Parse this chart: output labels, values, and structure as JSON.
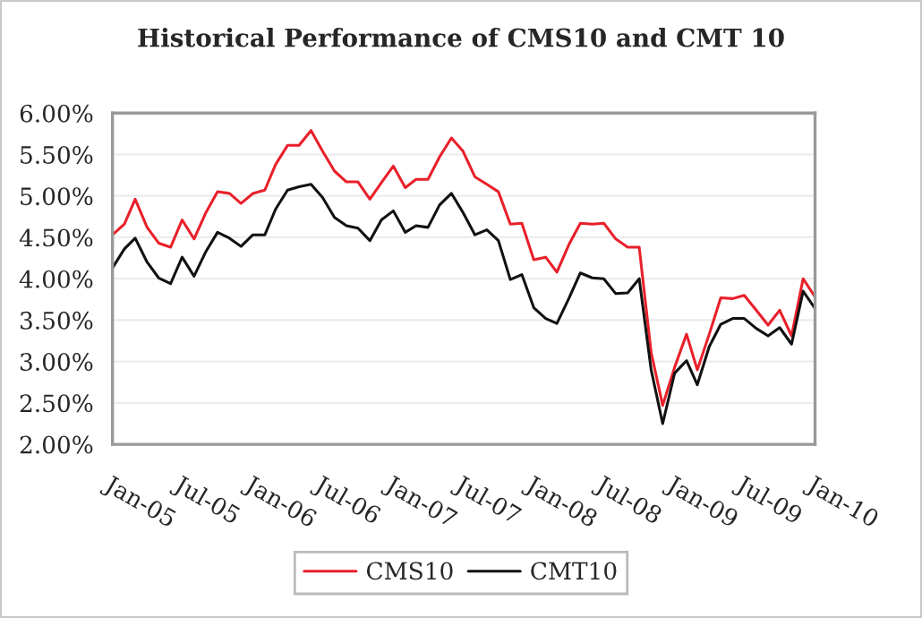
{
  "chart_data": {
    "type": "line",
    "title": "Historical Performance of CMS10 and CMT 10",
    "x": [
      "2005-01",
      "2005-02",
      "2005-03",
      "2005-04",
      "2005-05",
      "2005-06",
      "2005-07",
      "2005-08",
      "2005-09",
      "2005-10",
      "2005-11",
      "2005-12",
      "2006-01",
      "2006-02",
      "2006-03",
      "2006-04",
      "2006-05",
      "2006-06",
      "2006-07",
      "2006-08",
      "2006-09",
      "2006-10",
      "2006-11",
      "2006-12",
      "2007-01",
      "2007-02",
      "2007-03",
      "2007-04",
      "2007-05",
      "2007-06",
      "2007-07",
      "2007-08",
      "2007-09",
      "2007-10",
      "2007-11",
      "2007-12",
      "2008-01",
      "2008-02",
      "2008-03",
      "2008-04",
      "2008-05",
      "2008-06",
      "2008-07",
      "2008-08",
      "2008-09",
      "2008-10",
      "2008-11",
      "2008-12",
      "2009-01",
      "2009-02",
      "2009-03",
      "2009-04",
      "2009-05",
      "2009-06",
      "2009-07",
      "2009-08",
      "2009-09",
      "2009-10",
      "2009-11",
      "2009-12",
      "2010-01"
    ],
    "series": [
      {
        "name": "CMS10",
        "color": "#e8202a",
        "values": [
          4.53,
          4.66,
          4.96,
          4.62,
          4.43,
          4.38,
          4.71,
          4.48,
          4.8,
          5.05,
          5.03,
          4.91,
          5.03,
          5.07,
          5.38,
          5.61,
          5.61,
          5.79,
          5.54,
          5.3,
          5.17,
          5.17,
          4.96,
          5.16,
          5.36,
          5.1,
          5.2,
          5.2,
          5.47,
          5.7,
          5.54,
          5.23,
          5.14,
          5.05,
          4.66,
          4.67,
          4.23,
          4.26,
          4.08,
          4.41,
          4.67,
          4.66,
          4.67,
          4.48,
          4.38,
          4.38,
          3.11,
          2.47,
          2.93,
          3.33,
          2.9,
          3.33,
          3.77,
          3.76,
          3.8,
          3.62,
          3.44,
          3.62,
          3.31,
          4.0,
          3.78
        ]
      },
      {
        "name": "CMT10",
        "color": "#111111",
        "values": [
          4.13,
          4.36,
          4.49,
          4.2,
          4.01,
          3.94,
          4.26,
          4.03,
          4.33,
          4.56,
          4.49,
          4.39,
          4.53,
          4.53,
          4.84,
          5.07,
          5.11,
          5.14,
          4.98,
          4.74,
          4.64,
          4.61,
          4.46,
          4.71,
          4.82,
          4.56,
          4.64,
          4.62,
          4.89,
          5.03,
          4.8,
          4.53,
          4.59,
          4.46,
          3.99,
          4.05,
          3.65,
          3.52,
          3.46,
          3.76,
          4.07,
          4.01,
          4.0,
          3.82,
          3.83,
          4.0,
          2.9,
          2.25,
          2.86,
          3.01,
          2.72,
          3.18,
          3.45,
          3.52,
          3.52,
          3.4,
          3.31,
          3.41,
          3.21,
          3.85,
          3.64
        ]
      }
    ],
    "xlim": [
      "2005-01",
      "2010-01"
    ],
    "xticks": [
      {
        "value": "2005-01",
        "label": "Jan-05"
      },
      {
        "value": "2005-07",
        "label": "Jul-05"
      },
      {
        "value": "2006-01",
        "label": "Jan-06"
      },
      {
        "value": "2006-07",
        "label": "Jul-06"
      },
      {
        "value": "2007-01",
        "label": "Jan-07"
      },
      {
        "value": "2007-07",
        "label": "Jul-07"
      },
      {
        "value": "2008-01",
        "label": "Jan-08"
      },
      {
        "value": "2008-07",
        "label": "Jul-08"
      },
      {
        "value": "2009-01",
        "label": "Jan-09"
      },
      {
        "value": "2009-07",
        "label": "Jul-09"
      },
      {
        "value": "2010-01",
        "label": "Jan-10"
      }
    ],
    "ylim": [
      2,
      6
    ],
    "yticks": [
      {
        "value": 2,
        "label": "2.00%"
      },
      {
        "value": 2.5,
        "label": "2.50%"
      },
      {
        "value": 3,
        "label": "3.00%"
      },
      {
        "value": 3.5,
        "label": "3.50%"
      },
      {
        "value": 4,
        "label": "4.00%"
      },
      {
        "value": 4.5,
        "label": "4.50%"
      },
      {
        "value": 5,
        "label": "5.00%"
      },
      {
        "value": 5.5,
        "label": "5.50%"
      },
      {
        "value": 6,
        "label": "6.00%"
      }
    ],
    "grid": "y",
    "legend": "bottom",
    "marker": "none",
    "line_style": "solid"
  }
}
